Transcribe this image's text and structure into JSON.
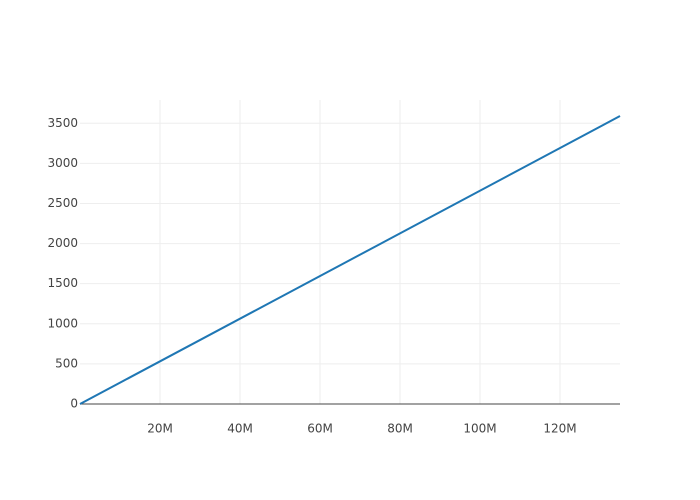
{
  "chart_data": {
    "type": "line",
    "x": [
      0,
      135000000
    ],
    "series": [
      {
        "color": "#1f77b4",
        "values": [
          0,
          3590
        ]
      }
    ],
    "xlim": [
      0,
      135000000
    ],
    "xticks": [
      {
        "value": 20000000,
        "label": "20M"
      },
      {
        "value": 40000000,
        "label": "40M"
      },
      {
        "value": 60000000,
        "label": "60M"
      },
      {
        "value": 80000000,
        "label": "80M"
      },
      {
        "value": 100000000,
        "label": "100M"
      },
      {
        "value": 120000000,
        "label": "120M"
      }
    ],
    "ylim": [
      0,
      3790
    ],
    "yticks": [
      0,
      500,
      1000,
      1500,
      2000,
      2500,
      3000,
      3500
    ],
    "grid": true
  }
}
